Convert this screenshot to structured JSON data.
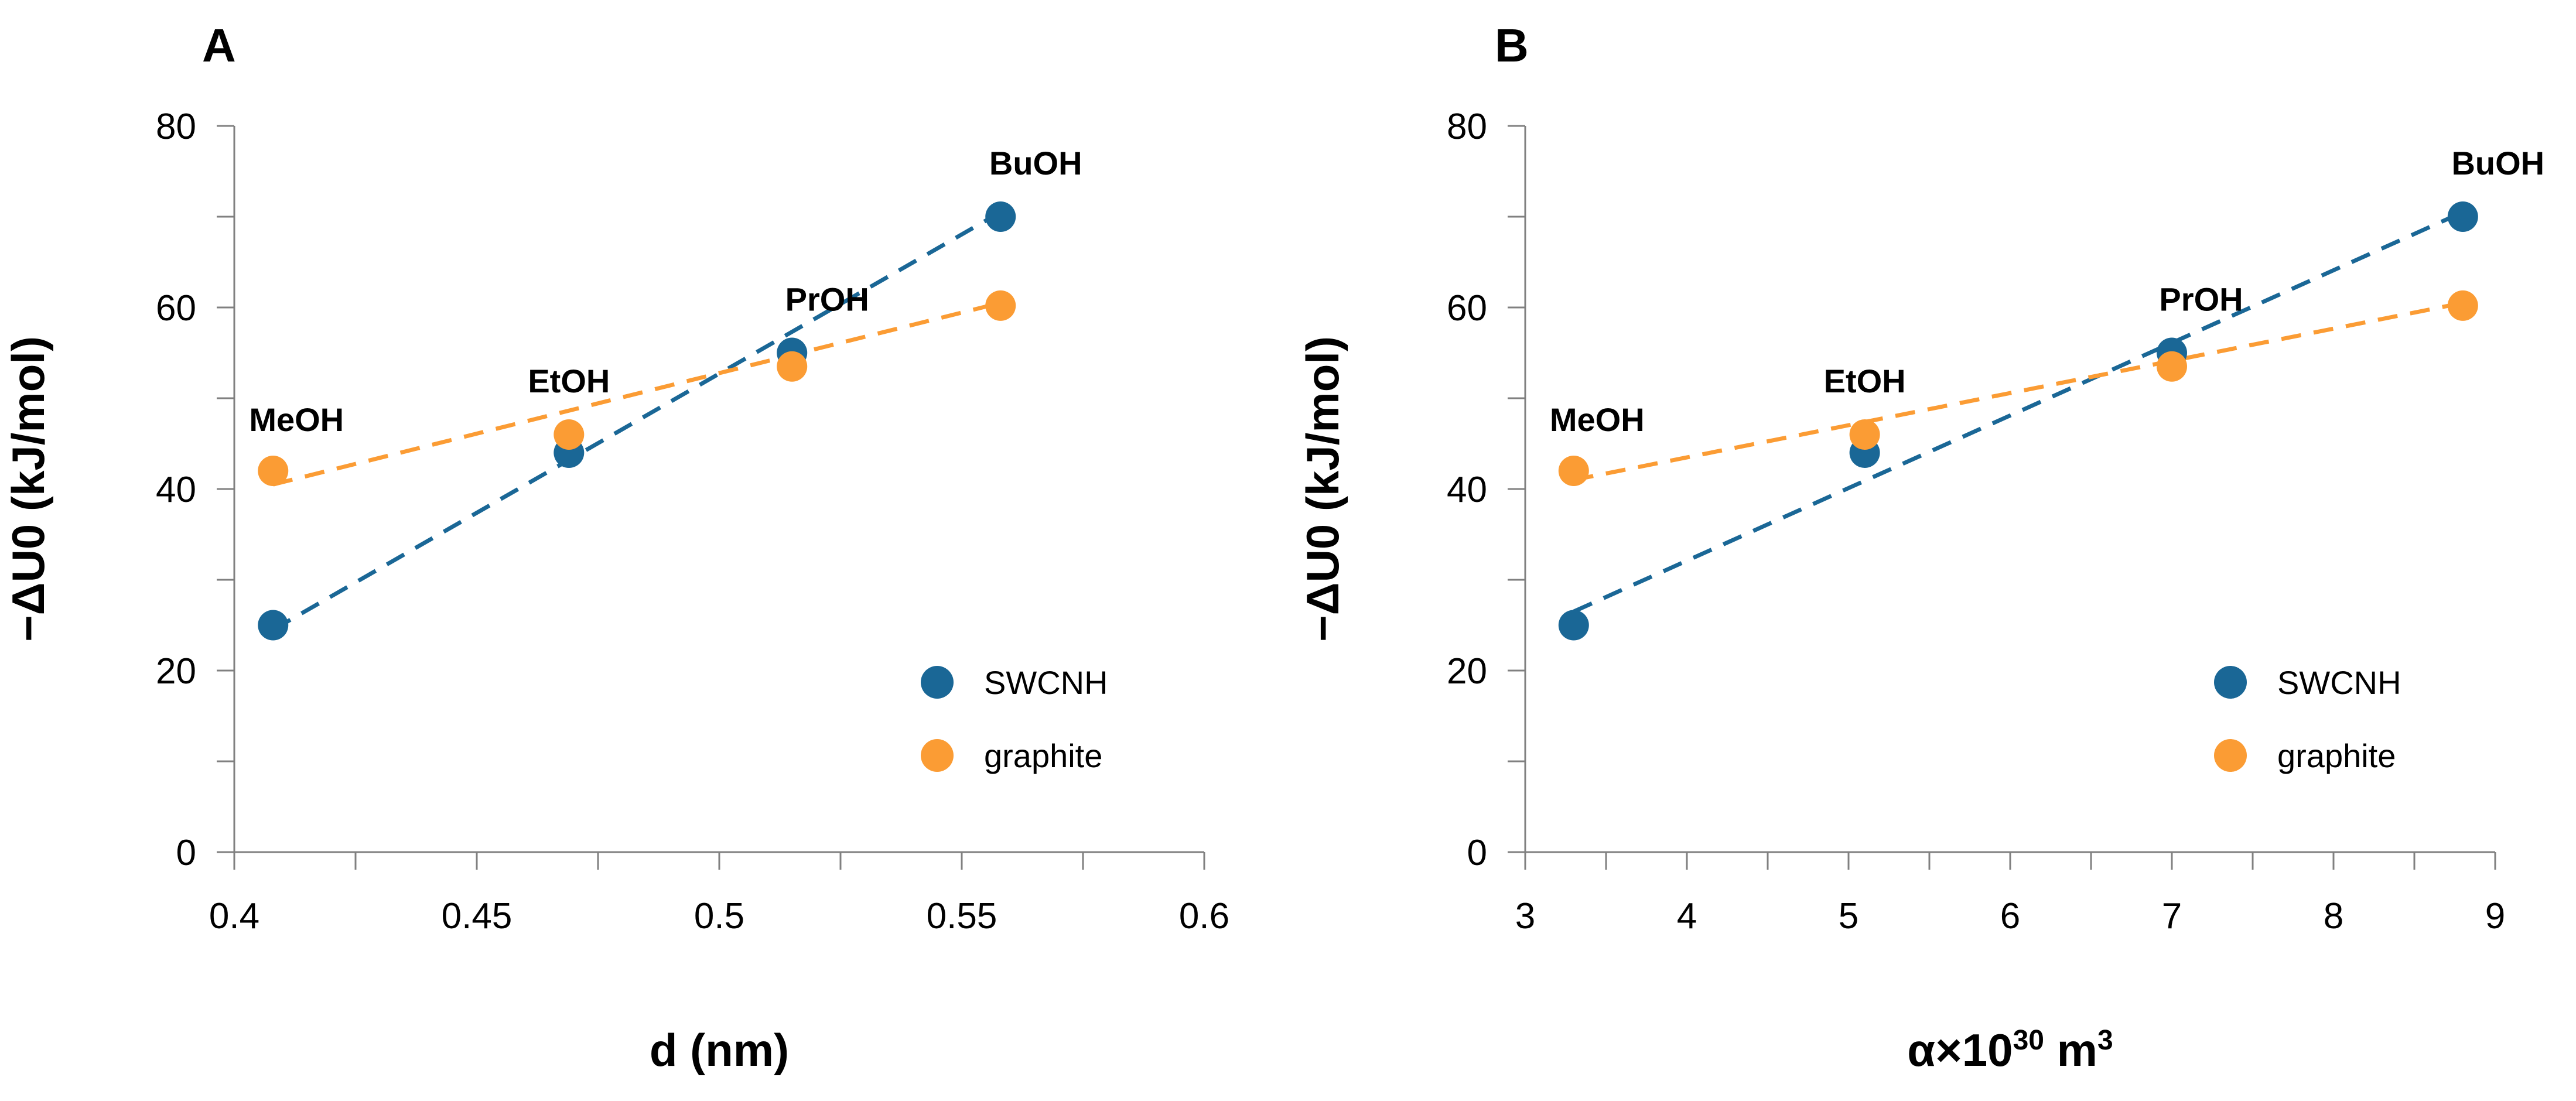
{
  "chart_data": [
    {
      "panel": "A",
      "type": "scatter",
      "xlabel": "d (nm)",
      "ylabel": "−ΔU0 (kJ/mol)",
      "xlim": [
        0.4,
        0.6
      ],
      "ylim": [
        0,
        80
      ],
      "xticks": [
        0.4,
        0.45,
        0.5,
        0.55,
        0.6
      ],
      "xtick_labels": [
        "0.4",
        "0.45",
        "0.5",
        "0.55",
        "0.6"
      ],
      "yticks": [
        0,
        20,
        40,
        60,
        80
      ],
      "ytick_labels": [
        "0",
        "20",
        "40",
        "60",
        "80"
      ],
      "point_labels": [
        {
          "text": "MeOH",
          "x": 0.408
        },
        {
          "text": "EtOH",
          "x": 0.469
        },
        {
          "text": "PrOH",
          "x": 0.515
        },
        {
          "text": "BuOH",
          "x": 0.558
        }
      ],
      "legend_position": "bottom-right",
      "series": [
        {
          "name": "SWCNH",
          "color": "#1a6796",
          "x": [
            0.408,
            0.469,
            0.515,
            0.558
          ],
          "y": [
            25,
            44,
            55,
            70
          ],
          "fit": [
            [
              0.408,
              24.5
            ],
            [
              0.558,
              70.5
            ]
          ]
        },
        {
          "name": "graphite",
          "color": "#fb9c34",
          "x": [
            0.408,
            0.469,
            0.515,
            0.558
          ],
          "y": [
            42,
            46,
            53.5,
            60.2
          ],
          "fit": [
            [
              0.408,
              40.5
            ],
            [
              0.558,
              60.5
            ]
          ]
        }
      ]
    },
    {
      "panel": "B",
      "type": "scatter",
      "xlabel": "α×10",
      "xlabel_sup": "30",
      "xlabel_unit": " m",
      "xlabel_unit_sup": "3",
      "ylabel": "−ΔU0 (kJ/mol)",
      "xlim": [
        3,
        9
      ],
      "ylim": [
        0,
        80
      ],
      "xticks": [
        3,
        4,
        5,
        6,
        7,
        8,
        9
      ],
      "xtick_labels": [
        "3",
        "4",
        "5",
        "6",
        "7",
        "8",
        "9"
      ],
      "yticks": [
        0,
        20,
        40,
        60,
        80
      ],
      "ytick_labels": [
        "0",
        "20",
        "40",
        "60",
        "80"
      ],
      "point_labels": [
        {
          "text": "MeOH",
          "x": 3.3
        },
        {
          "text": "EtOH",
          "x": 5.1
        },
        {
          "text": "PrOH",
          "x": 7.0
        },
        {
          "text": "BuOH",
          "x": 8.8
        }
      ],
      "legend_position": "bottom-right",
      "series": [
        {
          "name": "SWCNH",
          "color": "#1a6796",
          "x": [
            3.3,
            5.1,
            7.0,
            8.8
          ],
          "y": [
            25,
            44,
            55,
            70
          ],
          "fit": [
            [
              3.3,
              26.5
            ],
            [
              8.8,
              70.5
            ]
          ]
        },
        {
          "name": "graphite",
          "color": "#fb9c34",
          "x": [
            3.3,
            5.1,
            7.0,
            8.8
          ],
          "y": [
            42,
            46,
            53.5,
            60.2
          ],
          "fit": [
            [
              3.3,
              41
            ],
            [
              8.8,
              60.5
            ]
          ]
        }
      ]
    }
  ]
}
